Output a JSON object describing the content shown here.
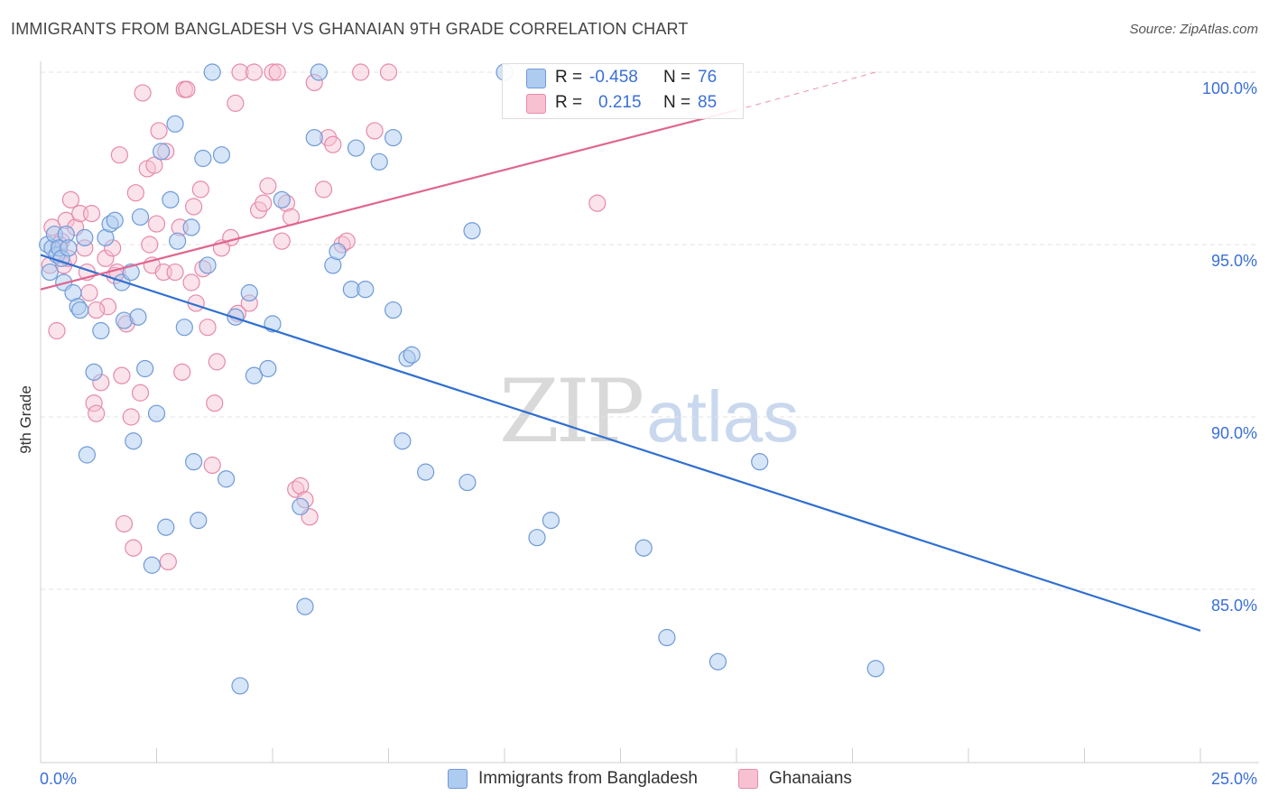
{
  "title": "IMMIGRANTS FROM BANGLADESH VS GHANAIAN 9TH GRADE CORRELATION CHART",
  "source": "Source: ZipAtlas.com",
  "watermark": {
    "zip": "ZIP",
    "atlas": "atlas"
  },
  "colors": {
    "blue_fill": "#aecbf0",
    "blue_stroke": "#6f9ad8",
    "blue_line": "#2f6fcf",
    "pink_fill": "#f7c1d2",
    "pink_stroke": "#e68aaa",
    "pink_line": "#e0658f",
    "grid": "#e3e3e3",
    "axis_text": "#3a6fd8"
  },
  "legend": {
    "rows": [
      {
        "r_label": "R =",
        "r_value": "-0.458",
        "n_label": "N =",
        "n_value": "76"
      },
      {
        "r_label": "R =",
        "r_value": "0.215",
        "n_label": "N =",
        "n_value": "85"
      }
    ]
  },
  "bottom_legend": {
    "series1": "Immigrants from Bangladesh",
    "series2": "Ghanaians"
  },
  "chart_data": {
    "type": "scatter",
    "title": "IMMIGRANTS FROM BANGLADESH VS GHANAIAN 9TH GRADE CORRELATION CHART",
    "xlabel": "",
    "ylabel": "9th Grade",
    "xlim": [
      0,
      25
    ],
    "ylim": [
      80.5,
      100.8
    ],
    "x_tick_labels": [
      "0.0%",
      "25.0%"
    ],
    "y_ticks": [
      85,
      90,
      95,
      100
    ],
    "y_tick_labels": [
      "85.0%",
      "90.0%",
      "95.0%",
      "100.0%"
    ],
    "series": [
      {
        "name": "Immigrants from Bangladesh",
        "R": -0.458,
        "N": 76,
        "trend": {
          "x0": 0,
          "y0": 94.7,
          "x1": 25,
          "y1": 83.8
        },
        "points": [
          [
            0.15,
            95.0
          ],
          [
            0.2,
            94.2
          ],
          [
            0.25,
            94.9
          ],
          [
            0.3,
            95.3
          ],
          [
            0.35,
            94.7
          ],
          [
            0.4,
            94.9
          ],
          [
            0.45,
            94.6
          ],
          [
            0.5,
            93.9
          ],
          [
            0.55,
            95.3
          ],
          [
            0.6,
            94.9
          ],
          [
            0.7,
            93.6
          ],
          [
            0.8,
            93.2
          ],
          [
            0.85,
            93.1
          ],
          [
            0.95,
            95.2
          ],
          [
            1.0,
            88.9
          ],
          [
            1.15,
            91.3
          ],
          [
            1.3,
            92.5
          ],
          [
            1.4,
            95.2
          ],
          [
            1.5,
            95.6
          ],
          [
            1.6,
            95.7
          ],
          [
            1.75,
            93.9
          ],
          [
            1.8,
            92.8
          ],
          [
            1.95,
            94.2
          ],
          [
            2.0,
            89.3
          ],
          [
            2.1,
            92.9
          ],
          [
            2.15,
            95.8
          ],
          [
            2.25,
            91.4
          ],
          [
            2.4,
            85.7
          ],
          [
            2.5,
            90.1
          ],
          [
            2.6,
            97.7
          ],
          [
            2.7,
            86.8
          ],
          [
            2.8,
            96.3
          ],
          [
            2.9,
            98.5
          ],
          [
            2.95,
            95.1
          ],
          [
            3.1,
            92.6
          ],
          [
            3.25,
            95.5
          ],
          [
            3.3,
            88.7
          ],
          [
            3.4,
            87.0
          ],
          [
            3.5,
            97.5
          ],
          [
            3.6,
            94.4
          ],
          [
            3.7,
            100.0
          ],
          [
            3.9,
            97.6
          ],
          [
            4.0,
            88.2
          ],
          [
            4.3,
            82.2
          ],
          [
            4.2,
            92.9
          ],
          [
            4.5,
            93.6
          ],
          [
            4.6,
            91.2
          ],
          [
            4.9,
            91.4
          ],
          [
            5.0,
            92.7
          ],
          [
            5.6,
            87.4
          ],
          [
            5.7,
            84.5
          ],
          [
            5.9,
            98.1
          ],
          [
            6.0,
            100.0
          ],
          [
            6.3,
            94.4
          ],
          [
            6.4,
            94.8
          ],
          [
            6.7,
            93.7
          ],
          [
            6.8,
            97.8
          ],
          [
            7.0,
            93.7
          ],
          [
            7.3,
            97.4
          ],
          [
            7.6,
            98.1
          ],
          [
            7.6,
            93.1
          ],
          [
            7.8,
            89.3
          ],
          [
            7.9,
            91.7
          ],
          [
            8.0,
            91.8
          ],
          [
            8.3,
            88.4
          ],
          [
            9.2,
            88.1
          ],
          [
            9.3,
            95.4
          ],
          [
            10.0,
            100.0
          ],
          [
            10.7,
            86.5
          ],
          [
            11.0,
            87.0
          ],
          [
            13.0,
            86.2
          ],
          [
            15.5,
            88.7
          ],
          [
            13.5,
            83.6
          ],
          [
            14.6,
            82.9
          ],
          [
            18.0,
            82.7
          ],
          [
            5.2,
            96.3
          ]
        ]
      },
      {
        "name": "Ghanaians",
        "R": 0.215,
        "N": 85,
        "trend": {
          "x0": 0,
          "y0": 93.7,
          "x1": 15,
          "y1": 98.9
        },
        "trend_dashed": {
          "x0": 15,
          "y0": 98.9,
          "x1": 18.0,
          "y1": 100.0
        },
        "points": [
          [
            0.2,
            94.4
          ],
          [
            0.25,
            95.5
          ],
          [
            0.35,
            92.5
          ],
          [
            0.45,
            95.1
          ],
          [
            0.5,
            94.4
          ],
          [
            0.55,
            95.7
          ],
          [
            0.6,
            94.6
          ],
          [
            0.65,
            96.3
          ],
          [
            0.75,
            95.5
          ],
          [
            0.85,
            95.9
          ],
          [
            0.95,
            94.9
          ],
          [
            1.0,
            94.2
          ],
          [
            1.05,
            93.6
          ],
          [
            1.1,
            95.9
          ],
          [
            1.15,
            90.4
          ],
          [
            1.2,
            90.1
          ],
          [
            1.3,
            91.0
          ],
          [
            1.4,
            94.6
          ],
          [
            1.45,
            93.2
          ],
          [
            1.55,
            94.9
          ],
          [
            1.6,
            94.1
          ],
          [
            1.65,
            94.2
          ],
          [
            1.75,
            91.2
          ],
          [
            1.85,
            92.7
          ],
          [
            1.95,
            90.0
          ],
          [
            2.0,
            86.2
          ],
          [
            2.05,
            96.5
          ],
          [
            2.15,
            90.7
          ],
          [
            2.2,
            99.4
          ],
          [
            2.3,
            97.2
          ],
          [
            2.4,
            94.4
          ],
          [
            2.45,
            97.3
          ],
          [
            2.5,
            95.6
          ],
          [
            2.55,
            98.3
          ],
          [
            2.65,
            94.2
          ],
          [
            2.7,
            97.7
          ],
          [
            2.75,
            85.8
          ],
          [
            3.0,
            95.5
          ],
          [
            3.05,
            91.3
          ],
          [
            3.1,
            99.5
          ],
          [
            3.15,
            99.5
          ],
          [
            3.3,
            96.1
          ],
          [
            3.35,
            93.3
          ],
          [
            3.45,
            96.6
          ],
          [
            3.5,
            94.3
          ],
          [
            3.6,
            92.6
          ],
          [
            3.7,
            88.6
          ],
          [
            3.75,
            90.4
          ],
          [
            3.8,
            91.6
          ],
          [
            4.1,
            95.2
          ],
          [
            4.2,
            99.1
          ],
          [
            4.3,
            100.0
          ],
          [
            4.5,
            93.3
          ],
          [
            4.6,
            100.0
          ],
          [
            4.7,
            96.0
          ],
          [
            4.8,
            96.2
          ],
          [
            4.9,
            96.7
          ],
          [
            5.0,
            100.0
          ],
          [
            5.2,
            95.1
          ],
          [
            5.3,
            96.2
          ],
          [
            5.4,
            95.8
          ],
          [
            5.5,
            87.9
          ],
          [
            5.6,
            88.0
          ],
          [
            5.7,
            87.6
          ],
          [
            5.8,
            87.1
          ],
          [
            5.9,
            99.7
          ],
          [
            6.1,
            96.6
          ],
          [
            6.2,
            98.1
          ],
          [
            6.3,
            97.9
          ],
          [
            6.5,
            95.0
          ],
          [
            6.9,
            100.0
          ],
          [
            7.2,
            98.3
          ],
          [
            12.0,
            96.2
          ],
          [
            1.7,
            97.6
          ],
          [
            2.9,
            94.2
          ],
          [
            4.25,
            93.0
          ],
          [
            5.1,
            100.0
          ],
          [
            7.5,
            100.0
          ],
          [
            1.2,
            93.1
          ],
          [
            2.35,
            95.0
          ],
          [
            1.8,
            86.9
          ],
          [
            3.25,
            93.9
          ],
          [
            0.4,
            95.0
          ],
          [
            6.6,
            95.1
          ],
          [
            3.9,
            94.9
          ]
        ]
      }
    ]
  }
}
